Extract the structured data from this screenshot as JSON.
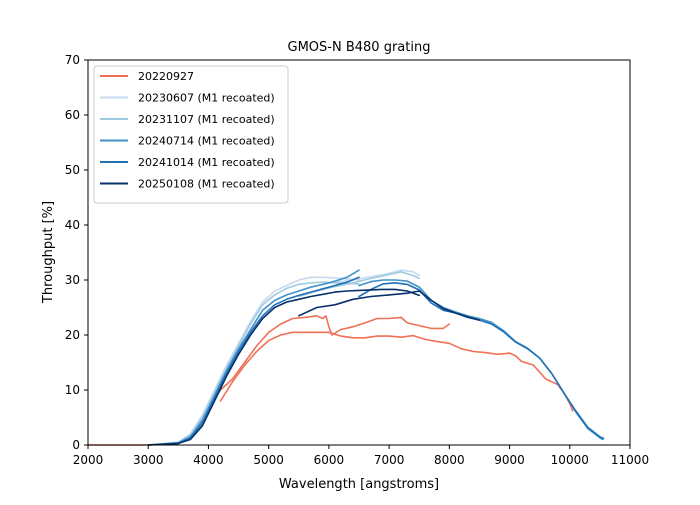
{
  "chart_data": {
    "type": "line",
    "title": "GMOS-N B480 grating",
    "xlabel": "Wavelength [angstroms]",
    "ylabel": "Throughput [%]",
    "xlim": [
      2000,
      11000
    ],
    "ylim": [
      0,
      70
    ],
    "xticks": [
      2000,
      3000,
      4000,
      5000,
      6000,
      7000,
      8000,
      9000,
      10000,
      11000
    ],
    "yticks": [
      0,
      10,
      20,
      30,
      40,
      50,
      60,
      70
    ],
    "grid": false,
    "legend_position": "top-left",
    "series": [
      {
        "name": "20220927",
        "color": "#f07156",
        "segments": [
          [
            [
              2000,
              0
            ],
            [
              3000,
              0
            ],
            [
              3300,
              0.1
            ],
            [
              3500,
              0.3
            ],
            [
              3700,
              1.5
            ],
            [
              3800,
              3
            ],
            [
              3900,
              5
            ],
            [
              4000,
              7
            ],
            [
              4100,
              8.5
            ],
            [
              4200,
              10
            ],
            [
              4400,
              12
            ],
            [
              4600,
              15
            ],
            [
              4800,
              18
            ],
            [
              5000,
              20.5
            ],
            [
              5200,
              22
            ],
            [
              5400,
              23
            ],
            [
              5600,
              23.2
            ],
            [
              5800,
              23.5
            ],
            [
              5900,
              23
            ],
            [
              5950,
              23.5
            ],
            [
              6000,
              21.5
            ],
            [
              6050,
              20
            ],
            [
              6200,
              21
            ],
            [
              6400,
              21.5
            ],
            [
              6600,
              22.2
            ],
            [
              6800,
              23
            ],
            [
              7000,
              23
            ],
            [
              7200,
              23.2
            ],
            [
              7300,
              22.2
            ],
            [
              7500,
              21.7
            ],
            [
              7700,
              21.2
            ],
            [
              7900,
              21.2
            ],
            [
              8000,
              22
            ]
          ],
          [
            [
              4200,
              8
            ],
            [
              4400,
              11.5
            ],
            [
              4600,
              14.5
            ],
            [
              4800,
              17
            ],
            [
              5000,
              19
            ],
            [
              5200,
              20
            ],
            [
              5400,
              20.5
            ],
            [
              5600,
              20.5
            ],
            [
              5800,
              20.5
            ],
            [
              6000,
              20.5
            ],
            [
              6200,
              19.8
            ],
            [
              6400,
              19.5
            ],
            [
              6600,
              19.5
            ],
            [
              6800,
              19.8
            ],
            [
              7000,
              19.8
            ],
            [
              7200,
              19.6
            ],
            [
              7400,
              19.9
            ],
            [
              7600,
              19.2
            ],
            [
              7800,
              18.8
            ],
            [
              8000,
              18.5
            ],
            [
              8200,
              17.5
            ],
            [
              8400,
              17
            ],
            [
              8600,
              16.8
            ],
            [
              8800,
              16.5
            ],
            [
              9000,
              16.7
            ],
            [
              9100,
              16.2
            ],
            [
              9200,
              15.2
            ],
            [
              9400,
              14.5
            ],
            [
              9600,
              12
            ],
            [
              9700,
              11.5
            ],
            [
              9800,
              11
            ],
            [
              9900,
              9.5
            ],
            [
              10000,
              7.5
            ],
            [
              10050,
              6.2
            ]
          ]
        ]
      },
      {
        "name": "20230607 (M1 recoated)",
        "color": "#c6dbef",
        "segments": [
          [
            [
              3000,
              0
            ],
            [
              3500,
              0.5
            ],
            [
              3700,
              2
            ],
            [
              3900,
              5.5
            ],
            [
              4100,
              10
            ],
            [
              4300,
              14.5
            ],
            [
              4500,
              18.5
            ],
            [
              4700,
              22.5
            ],
            [
              4900,
              26
            ],
            [
              5100,
              28
            ],
            [
              5300,
              29
            ],
            [
              5500,
              30
            ],
            [
              5700,
              30.5
            ],
            [
              5900,
              30.5
            ],
            [
              6100,
              30.4
            ],
            [
              6300,
              30.2
            ],
            [
              6500,
              30
            ]
          ],
          [
            [
              5500,
              28
            ],
            [
              5800,
              29
            ],
            [
              6100,
              29.6
            ],
            [
              6400,
              30
            ],
            [
              6700,
              30.6
            ],
            [
              7000,
              31.2
            ],
            [
              7200,
              31.8
            ],
            [
              7400,
              31.5
            ],
            [
              7500,
              30.8
            ]
          ]
        ]
      },
      {
        "name": "20231107 (M1 recoated)",
        "color": "#9ecae1",
        "segments": [
          [
            [
              3000,
              0
            ],
            [
              3500,
              0.5
            ],
            [
              3700,
              1.8
            ],
            [
              3900,
              5
            ],
            [
              4100,
              9.5
            ],
            [
              4300,
              14
            ],
            [
              4500,
              18
            ],
            [
              4700,
              22
            ],
            [
              4900,
              25.5
            ],
            [
              5100,
              27.3
            ],
            [
              5300,
              28.5
            ],
            [
              5500,
              29.2
            ],
            [
              5700,
              29.5
            ],
            [
              5900,
              29.6
            ],
            [
              6100,
              29.5
            ],
            [
              6300,
              29.4
            ],
            [
              6500,
              29.3
            ]
          ],
          [
            [
              5500,
              27
            ],
            [
              5800,
              28
            ],
            [
              6100,
              28.8
            ],
            [
              6400,
              29.5
            ],
            [
              6700,
              30.3
            ],
            [
              7000,
              31
            ],
            [
              7200,
              31.5
            ],
            [
              7400,
              30.8
            ],
            [
              7500,
              30.3
            ]
          ]
        ]
      },
      {
        "name": "20240714 (M1 recoated)",
        "color": "#4292c6",
        "segments": [
          [
            [
              3000,
              0
            ],
            [
              3500,
              0.4
            ],
            [
              3700,
              1.5
            ],
            [
              3900,
              4.5
            ],
            [
              4100,
              9
            ],
            [
              4300,
              13.5
            ],
            [
              4500,
              17.5
            ],
            [
              4700,
              21
            ],
            [
              4900,
              24.5
            ],
            [
              5100,
              26.3
            ],
            [
              5300,
              27.3
            ],
            [
              5500,
              28
            ],
            [
              5700,
              28.7
            ],
            [
              5900,
              29.2
            ],
            [
              6100,
              29.8
            ],
            [
              6300,
              30.5
            ],
            [
              6500,
              31.8
            ]
          ],
          [
            [
              6500,
              29
            ],
            [
              6700,
              29.7
            ],
            [
              6900,
              30
            ],
            [
              7100,
              30
            ],
            [
              7300,
              29.8
            ],
            [
              7500,
              28.7
            ],
            [
              7700,
              26.3
            ],
            [
              7900,
              25
            ],
            [
              8100,
              24.2
            ],
            [
              8300,
              23.5
            ],
            [
              8500,
              23
            ],
            [
              8700,
              22.3
            ],
            [
              8900,
              20.8
            ],
            [
              9100,
              18.8
            ],
            [
              9300,
              17.6
            ],
            [
              9500,
              15.8
            ],
            [
              9700,
              13
            ],
            [
              9900,
              9.5
            ],
            [
              10100,
              6
            ],
            [
              10300,
              3
            ],
            [
              10500,
              1.3
            ],
            [
              10550,
              1
            ]
          ]
        ]
      },
      {
        "name": "20241014 (M1 recoated)",
        "color": "#2171b5",
        "segments": [
          [
            [
              3000,
              0
            ],
            [
              3500,
              0.3
            ],
            [
              3700,
              1.3
            ],
            [
              3900,
              4
            ],
            [
              4100,
              8.5
            ],
            [
              4300,
              13
            ],
            [
              4500,
              17
            ],
            [
              4700,
              20.5
            ],
            [
              4900,
              23.5
            ],
            [
              5100,
              25.5
            ],
            [
              5300,
              26.5
            ],
            [
              5500,
              27.2
            ],
            [
              5700,
              27.8
            ],
            [
              5900,
              28.4
            ],
            [
              6100,
              29
            ],
            [
              6300,
              29.6
            ],
            [
              6500,
              30.5
            ]
          ],
          [
            [
              6500,
              27
            ],
            [
              6700,
              28.3
            ],
            [
              6900,
              29.3
            ],
            [
              7100,
              29.5
            ],
            [
              7300,
              29.2
            ],
            [
              7500,
              28.2
            ],
            [
              7700,
              25.8
            ],
            [
              7900,
              24.5
            ],
            [
              8100,
              24
            ],
            [
              8300,
              23.2
            ],
            [
              8500,
              22.7
            ],
            [
              8700,
              22
            ],
            [
              8900,
              20.6
            ],
            [
              9100,
              18.7
            ],
            [
              9300,
              17.5
            ],
            [
              9500,
              15.8
            ],
            [
              9700,
              13
            ],
            [
              9900,
              9.5
            ],
            [
              10100,
              6.2
            ],
            [
              10300,
              3.2
            ],
            [
              10500,
              1.5
            ],
            [
              10560,
              1.2
            ]
          ]
        ]
      },
      {
        "name": "20250108 (M1 recoated)",
        "color": "#08306b",
        "segments": [
          [
            [
              3000,
              0
            ],
            [
              3500,
              0.3
            ],
            [
              3700,
              1
            ],
            [
              3900,
              3.5
            ],
            [
              4100,
              8
            ],
            [
              4300,
              12.5
            ],
            [
              4500,
              16.5
            ],
            [
              4700,
              20
            ],
            [
              4900,
              23
            ],
            [
              5100,
              25
            ],
            [
              5300,
              26
            ],
            [
              5500,
              26.5
            ],
            [
              5700,
              27
            ],
            [
              5900,
              27.4
            ],
            [
              6100,
              27.8
            ],
            [
              6300,
              28
            ],
            [
              6500,
              28.1
            ],
            [
              6700,
              28.2
            ],
            [
              6900,
              28.3
            ],
            [
              7100,
              28.3
            ],
            [
              7300,
              28
            ],
            [
              7500,
              27.2
            ]
          ],
          [
            [
              5500,
              23.5
            ],
            [
              5800,
              25
            ],
            [
              6100,
              25.5
            ],
            [
              6400,
              26.5
            ],
            [
              6700,
              27
            ],
            [
              7000,
              27.3
            ],
            [
              7300,
              27.6
            ],
            [
              7500,
              28
            ],
            [
              7700,
              26.3
            ],
            [
              7900,
              24.8
            ],
            [
              8100,
              24
            ],
            [
              8300,
              23.3
            ],
            [
              8500,
              22.7
            ]
          ]
        ]
      }
    ]
  }
}
